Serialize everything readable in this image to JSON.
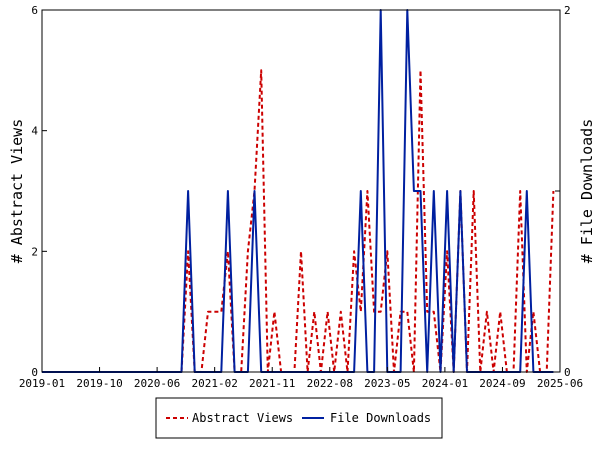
{
  "chart_data": {
    "type": "line",
    "x_tick_labels": [
      "2019-01",
      "2019-10",
      "2020-06",
      "2021-02",
      "2021-11",
      "2022-08",
      "2023-05",
      "2024-01",
      "2024-09",
      "2025-06"
    ],
    "x_range": [
      0,
      78
    ],
    "ylabel_left": "# Abstract Views",
    "ylabel_right": "# File Downloads",
    "ylim_left": [
      0,
      6
    ],
    "yticks_left": [
      "0",
      "2",
      "4",
      "6"
    ],
    "ylim_right": [
      0,
      2
    ],
    "yticks_right": [
      "0",
      "1",
      "2"
    ],
    "legend_position": "bottom-center",
    "series": [
      {
        "name": "Abstract Views",
        "axis": "left",
        "color": "#cc0000",
        "style": "dashed",
        "values": [
          0,
          0,
          0,
          0,
          0,
          0,
          0,
          0,
          0,
          0,
          0,
          0,
          0,
          0,
          0,
          0,
          0,
          0,
          0,
          0,
          0,
          0,
          2,
          0,
          0,
          1,
          1,
          1,
          2,
          0,
          0,
          2,
          3,
          5,
          0,
          1,
          0,
          0,
          0,
          2,
          0,
          1,
          0,
          1,
          0,
          1,
          0,
          2,
          1,
          3,
          1,
          1,
          2,
          0,
          1,
          1,
          0,
          5,
          1,
          1,
          0,
          2,
          0,
          3,
          0,
          3,
          0,
          1,
          0,
          1,
          0,
          0,
          3,
          0,
          1,
          0,
          0,
          3
        ]
      },
      {
        "name": "File Downloads",
        "axis": "right",
        "color": "#0020a0",
        "style": "solid",
        "values": [
          0,
          0,
          0,
          0,
          0,
          0,
          0,
          0,
          0,
          0,
          0,
          0,
          0,
          0,
          0,
          0,
          0,
          0,
          0,
          0,
          0,
          0,
          1,
          0,
          0,
          0,
          0,
          0,
          1,
          0,
          0,
          0,
          1,
          0,
          0,
          0,
          0,
          0,
          0,
          0,
          0,
          0,
          0,
          0,
          0,
          0,
          0,
          0,
          1,
          0,
          0,
          2,
          0,
          0,
          0,
          2,
          1,
          1,
          0,
          1,
          0,
          1,
          0,
          1,
          0,
          0,
          0,
          0,
          0,
          0,
          0,
          0,
          0,
          1,
          0,
          0,
          0,
          0
        ]
      }
    ]
  }
}
